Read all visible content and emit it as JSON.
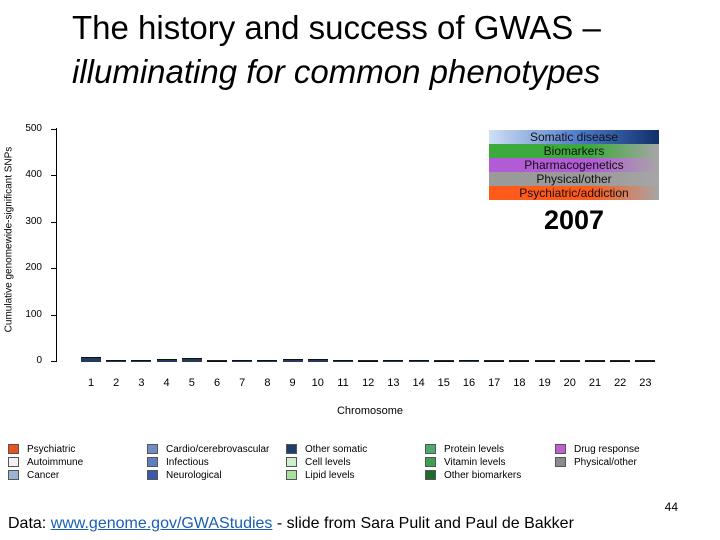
{
  "title": {
    "line1": "The history and success of GWAS –",
    "line2": "illuminating for common phenotypes"
  },
  "chart_data": {
    "type": "bar",
    "xlabel": "Chromosome",
    "ylabel": "Cumulative genomewide-significant SNPs",
    "ylim": [
      0,
      500
    ],
    "yticks": [
      0,
      100,
      200,
      300,
      400,
      500
    ],
    "categories": [
      "1",
      "2",
      "3",
      "4",
      "5",
      "6",
      "7",
      "8",
      "9",
      "10",
      "11",
      "12",
      "13",
      "14",
      "15",
      "16",
      "17",
      "18",
      "19",
      "20",
      "21",
      "22",
      "23"
    ],
    "values": [
      8,
      2,
      2,
      4,
      7,
      1,
      2,
      2,
      4,
      4,
      2,
      1,
      2,
      2,
      1,
      2,
      1,
      1,
      1,
      1,
      1,
      1,
      1
    ],
    "year": "2007",
    "category_legend": [
      {
        "label": "Somatic disease",
        "color": "#4a76c8"
      },
      {
        "label": "Biomarkers",
        "color": "#3daa3d"
      },
      {
        "label": "Pharmacogenetics",
        "color": "#b25bd6"
      },
      {
        "label": "Physical/other",
        "color": "#9a9a9a"
      },
      {
        "label": "Psychiatric/addiction",
        "color": "#ff5a1a"
      }
    ],
    "trait_legend": [
      {
        "label": "Psychiatric",
        "color": "#e8531c"
      },
      {
        "label": "Autoimmune",
        "color": "#f2f2f2"
      },
      {
        "label": "Cancer",
        "color": "#9db3d6"
      },
      {
        "label": "Cardio/cerebrovascular",
        "color": "#6f8fc0"
      },
      {
        "label": "Infectious",
        "color": "#5c7fc0"
      },
      {
        "label": "Neurological",
        "color": "#3c58a8"
      },
      {
        "label": "Other somatic",
        "color": "#1f3d6d"
      },
      {
        "label": "Cell levels",
        "color": "#cfeecf"
      },
      {
        "label": "Lipid levels",
        "color": "#a9e0a0"
      },
      {
        "label": "Protein levels",
        "color": "#4fa86e"
      },
      {
        "label": "Vitamin levels",
        "color": "#3fa04f"
      },
      {
        "label": "Other biomarkers",
        "color": "#1f6b2e"
      },
      {
        "label": "Drug response",
        "color": "#c05fd0"
      },
      {
        "label": "Physical/other",
        "color": "#8c8c8c"
      }
    ]
  },
  "slide_number": "44",
  "footer": {
    "prefix": "Data: ",
    "link": "www.genome.gov/GWAStudies",
    "suffix": " - slide from Sara Pulit and Paul de Bakker"
  }
}
